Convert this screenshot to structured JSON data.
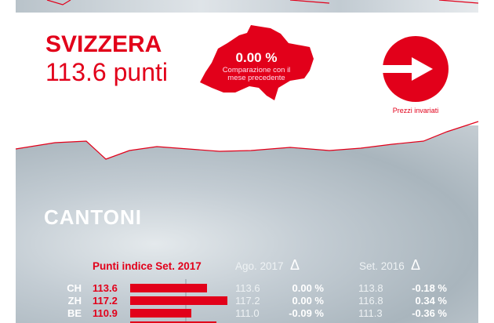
{
  "header": {
    "title": "SVIZZERA",
    "points": "113.6 punti"
  },
  "map": {
    "change": "0.00 %",
    "caption": "Comparazione con il mese precedente"
  },
  "trend": {
    "icon": "arrow-right-icon",
    "label": "Prezzi invariati"
  },
  "section": {
    "title": "CANTONI"
  },
  "table": {
    "headers": {
      "current": "Punti indice Set. 2017",
      "prev_month": "Ago. 2017",
      "prev_month_delta": "Δ",
      "prev_year": "Set. 2016",
      "prev_year_delta": "Δ"
    },
    "rows": [
      {
        "code": "CH",
        "value": "113.6",
        "bar": 113.6,
        "prev_month": "113.6",
        "prev_month_pct": "0.00 %",
        "prev_year": "113.8",
        "prev_year_pct": "-0.18 %"
      },
      {
        "code": "ZH",
        "value": "117.2",
        "bar": 117.2,
        "prev_month": "117.2",
        "prev_month_pct": "0.00 %",
        "prev_year": "116.8",
        "prev_year_pct": "0.34 %"
      },
      {
        "code": "BE",
        "value": "110.9",
        "bar": 110.9,
        "prev_month": "111.0",
        "prev_month_pct": "-0.09 %",
        "prev_year": "111.3",
        "prev_year_pct": "-0.36 %"
      }
    ]
  },
  "colors": {
    "accent": "#e2001a"
  }
}
